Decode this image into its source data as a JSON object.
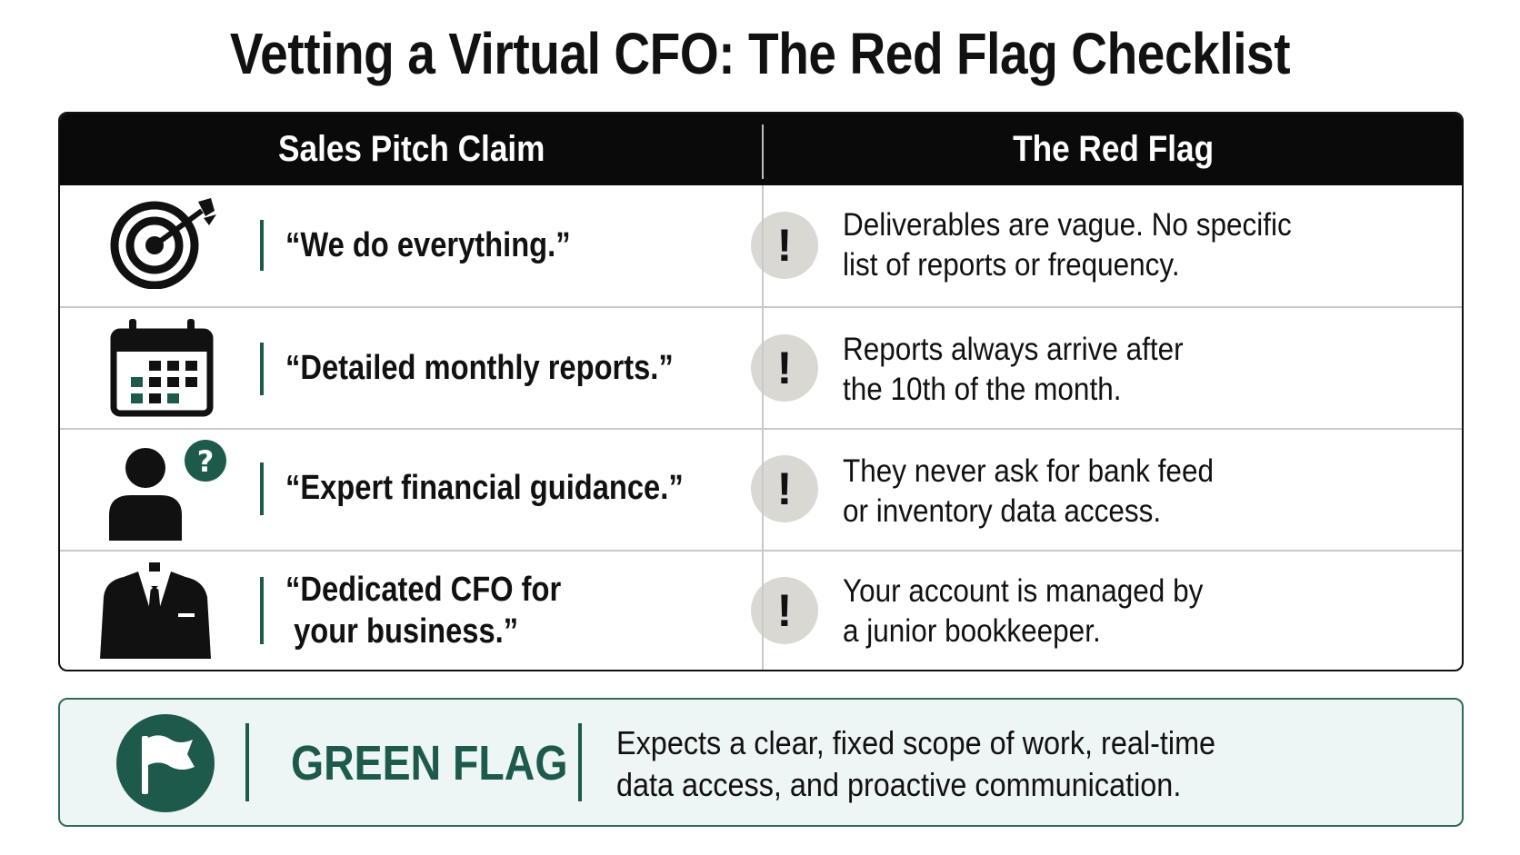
{
  "title": "Vetting a Virtual CFO: The Red Flag Checklist",
  "table": {
    "headers": [
      "Sales Pitch Claim",
      "The Red Flag"
    ],
    "rows": [
      {
        "icon": "target-icon",
        "claim_line1": "“We do everything.”",
        "claim_line2": "",
        "flag_line1": "Deliverables are vague. No specific",
        "flag_line2": "list of reports or frequency."
      },
      {
        "icon": "calendar-icon",
        "claim_line1": "“Detailed monthly reports.”",
        "claim_line2": "",
        "flag_line1": "Reports always arrive after",
        "flag_line2": "the 10th of the month."
      },
      {
        "icon": "person-question-icon",
        "claim_line1": "“Expert financial guidance.”",
        "claim_line2": "",
        "flag_line1": "They never ask for bank feed",
        "flag_line2": "or inventory data access."
      },
      {
        "icon": "suit-icon",
        "claim_line1": "“Dedicated CFO for",
        "claim_line2": " your business.”",
        "flag_line1": "Your account is managed by",
        "flag_line2": "a junior bookkeeper."
      }
    ],
    "warning_symbol": "!"
  },
  "green_flag": {
    "icon": "flag-icon",
    "label": "GREEN FLAG",
    "text_line1": "Expects a clear, fixed scope of work, real-time",
    "text_line2": "data access, and proactive communication."
  },
  "colors": {
    "accent": "#1e5a4c",
    "header_bg": "#0a0a0a",
    "warning_bg": "#d9d8d3",
    "green_bg": "#eef6f5"
  }
}
